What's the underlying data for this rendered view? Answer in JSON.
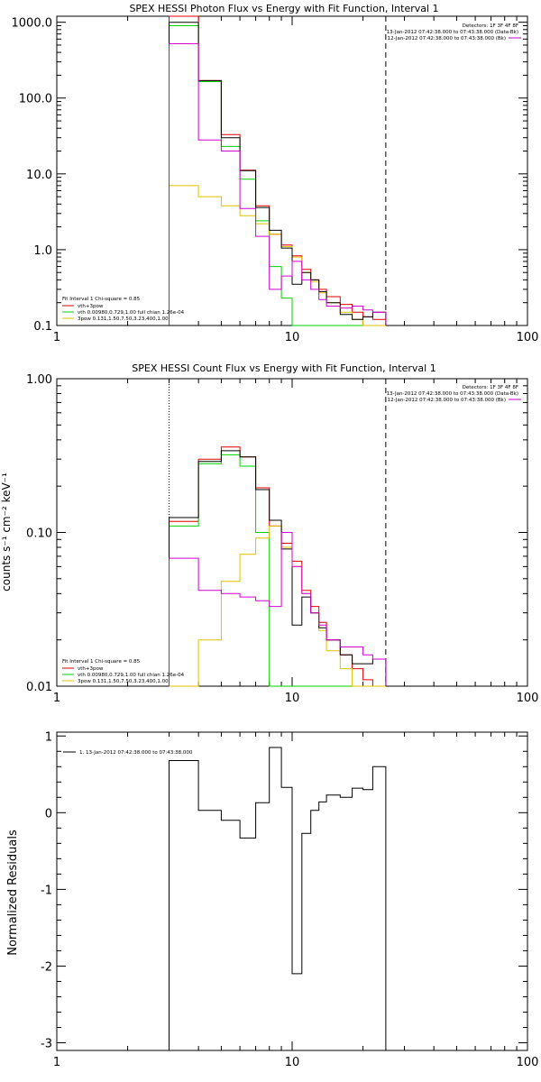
{
  "chart_data": [
    {
      "type": "line",
      "title": "SPEX HESSI Photon Flux vs Energy with Fit Function, Interval 1",
      "xscale": "log",
      "yscale": "log",
      "xlim": [
        1,
        100
      ],
      "ylim": [
        0.1,
        1200
      ],
      "xticks": [
        1,
        10,
        100
      ],
      "xtick_labels": [
        "1",
        "10",
        "100"
      ],
      "yticks": [
        0.1,
        1,
        10,
        100,
        1000
      ],
      "ytick_labels": [
        "0.1",
        "1.0",
        "10.0",
        "100.0",
        "1000.0"
      ],
      "xlabel": "",
      "ylabel": "",
      "info_lines": [
        "Detectors: 1F 3F 4F 8F",
        "13-Jan-2012 07:42:38.000 to 07:43:38.000 (Data-Bk)",
        "12-Jan-2012 07:42:38.000 to 07:43:38.000 (Bk)"
      ],
      "info_colors": [
        "#000000",
        "#000000",
        "#c000c0"
      ],
      "fit_label": "Fit Interval  1    Chi-square = 0.85",
      "dotted_x": 3,
      "dashed_x": 25,
      "edges": [
        3,
        4,
        5,
        6,
        7,
        8,
        9,
        10,
        11,
        12,
        13,
        14,
        16,
        18,
        20,
        22,
        25
      ],
      "series": [
        {
          "name": "vth+3pow",
          "color": "#e00000",
          "values": [
            1200,
            170,
            33,
            11.2,
            3.8,
            1.6,
            1.15,
            0.83,
            0.55,
            0.4,
            0.3,
            0.24,
            0.19,
            0.15,
            0.13,
            0.12
          ]
        },
        {
          "name": "vth 0.00980,0.729,1.00   full chian 1.26e-04",
          "color": "#00d000",
          "values": [
            900,
            165,
            23,
            8.5,
            2.4,
            0.6,
            0.23,
            0.1,
            0.1,
            0.1,
            0.1,
            0.1,
            0.1,
            0.1,
            0.1,
            0.1
          ]
        },
        {
          "name": "3pow 0.131,1.50,7.50,3.23,400,1.00",
          "color": "#e0c000",
          "values": [
            7,
            5,
            3.8,
            2.8,
            2.2,
            1.6,
            1.1,
            0.8,
            0.5,
            0.38,
            0.27,
            0.2,
            0.15,
            0.12,
            0.1,
            0.1
          ]
        },
        {
          "name": "",
          "color": "#000000",
          "values": [
            1000,
            170,
            30,
            11,
            3.6,
            1.8,
            1.05,
            0.35,
            0.5,
            0.4,
            0.28,
            0.2,
            0.14,
            0.12,
            0.13,
            0.15
          ]
        },
        {
          "name": "",
          "color": "#d000d0",
          "values": [
            520,
            28,
            20,
            3.5,
            1.5,
            0.3,
            0.45,
            0.7,
            0.4,
            0.3,
            0.22,
            0.18,
            0.17,
            0.18,
            0.16,
            0.15
          ]
        }
      ]
    },
    {
      "type": "line",
      "title": "SPEX HESSI Count Flux vs Energy with Fit Function, Interval 1",
      "xscale": "log",
      "yscale": "log",
      "xlim": [
        1,
        100
      ],
      "ylim": [
        0.01,
        1.0
      ],
      "xticks": [
        1,
        10,
        100
      ],
      "xtick_labels": [
        "1",
        "10",
        "100"
      ],
      "yticks": [
        0.01,
        0.1,
        1.0
      ],
      "ytick_labels": [
        "0.01",
        "0.10",
        "1.00"
      ],
      "xlabel": "",
      "ylabel": "counts s⁻¹ cm⁻² keV⁻¹",
      "info_lines": [
        "Detectors: 1F 3F 4F 8F",
        "13-Jan-2012 07:42:38.000 to 07:43:38.000 (Data-Bk)",
        "12-Jan-2012 07:42:38.000 to 07:43:38.000 (Bk)"
      ],
      "info_colors": [
        "#000000",
        "#000000",
        "#c000c0"
      ],
      "fit_label": "Fit Interval  1    Chi-square = 0.85",
      "dotted_x": 3,
      "dashed_x": 25,
      "edges": [
        3,
        4,
        5,
        6,
        7,
        8,
        9,
        10,
        11,
        12,
        13,
        14,
        16,
        18,
        20,
        22,
        25
      ],
      "series": [
        {
          "name": "vth+3pow",
          "color": "#e00000",
          "values": [
            0.118,
            0.3,
            0.36,
            0.31,
            0.195,
            0.11,
            0.085,
            0.065,
            0.042,
            0.033,
            0.026,
            0.02,
            0.016,
            0.013,
            0.011,
            0.01
          ]
        },
        {
          "name": "vth 0.00980,0.729,1.00   full chian 1.26e-04",
          "color": "#00d000",
          "values": [
            0.11,
            0.28,
            0.32,
            0.27,
            0.1,
            0.01,
            0.01,
            0.01,
            0.01,
            0.01,
            0.01,
            0.01,
            0.01,
            0.01,
            0.01,
            0.01
          ]
        },
        {
          "name": "3pow 0.131,1.50,7.50,3.23,400,1.00",
          "color": "#e0c000",
          "values": [
            0.01,
            0.02,
            0.048,
            0.072,
            0.092,
            0.11,
            0.08,
            0.06,
            0.04,
            0.03,
            0.023,
            0.017,
            0.013,
            0.01,
            0.01,
            0.01
          ]
        },
        {
          "name": "",
          "color": "#000000",
          "values": [
            0.125,
            0.29,
            0.34,
            0.31,
            0.19,
            0.12,
            0.078,
            0.025,
            0.038,
            0.03,
            0.024,
            0.02,
            0.016,
            0.014,
            0.014,
            0.015
          ]
        },
        {
          "name": "",
          "color": "#d000d0",
          "values": [
            0.068,
            0.042,
            0.04,
            0.038,
            0.036,
            0.033,
            0.1,
            0.06,
            0.04,
            0.03,
            0.025,
            0.02,
            0.018,
            0.018,
            0.016,
            0.015
          ]
        }
      ]
    },
    {
      "type": "line",
      "title": "",
      "xscale": "log",
      "yscale": "linear",
      "xlim": [
        1,
        100
      ],
      "ylim": [
        -3.1,
        1.05
      ],
      "xticks": [
        1,
        10,
        100
      ],
      "xtick_labels": [
        "1",
        "10",
        "100"
      ],
      "yticks": [
        -3,
        -2,
        -1,
        0,
        1
      ],
      "ytick_labels": [
        "-3",
        "-2",
        "-1",
        "0",
        "1"
      ],
      "xlabel": "",
      "ylabel": "Normalized Residuals",
      "legend": "1. 13-Jan-2012 07:42:38.000 to 07:43:38.000",
      "edges": [
        3,
        4,
        5,
        6,
        7,
        8,
        9,
        10,
        11,
        12,
        13,
        14,
        16,
        18,
        20,
        22,
        25
      ],
      "series": [
        {
          "name": "1. 13-Jan-2012 07:42:38.000 to 07:43:38.000",
          "color": "#000000",
          "values": [
            0.68,
            0.03,
            -0.1,
            -0.33,
            0.13,
            0.85,
            0.33,
            -2.1,
            -0.27,
            0.03,
            0.14,
            0.23,
            0.2,
            0.32,
            0.3,
            0.6
          ]
        }
      ]
    }
  ]
}
